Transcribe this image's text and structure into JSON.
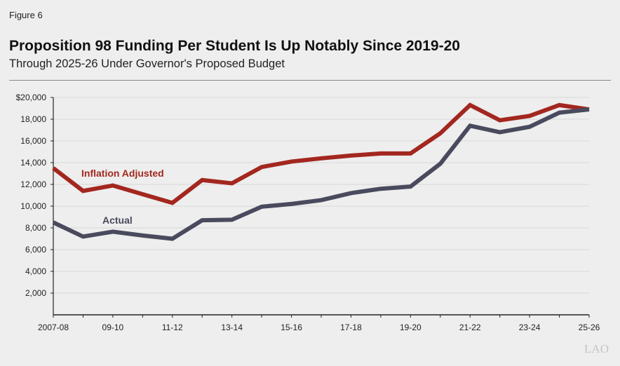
{
  "figure_label": "Figure 6",
  "logo_text": "LAO",
  "chart_data": {
    "type": "line",
    "title": "Proposition 98 Funding Per Student Is Up Notably Since 2019-20",
    "subtitle": "Through 2025-26 Under Governor's Proposed Budget",
    "xlabel": "",
    "ylabel": "",
    "categories": [
      "2007-08",
      "08-09",
      "09-10",
      "10-11",
      "11-12",
      "12-13",
      "13-14",
      "14-15",
      "15-16",
      "16-17",
      "17-18",
      "18-19",
      "19-20",
      "20-21",
      "21-22",
      "22-23",
      "23-24",
      "24-25",
      "25-26"
    ],
    "x_tick_labels": [
      "2007-08",
      "09-10",
      "11-12",
      "13-14",
      "15-16",
      "17-18",
      "19-20",
      "21-22",
      "23-24",
      "25-26"
    ],
    "y_tick_labels": [
      "$20,000",
      "18,000",
      "16,000",
      "14,000",
      "12,000",
      "10,000",
      "8,000",
      "6,000",
      "4,000",
      "2,000"
    ],
    "ylim": [
      0,
      20000
    ],
    "grid": true,
    "series": [
      {
        "name": "Inflation Adjusted",
        "color": "#a3271f",
        "values": [
          13500,
          11400,
          11900,
          11100,
          10300,
          12400,
          12100,
          13600,
          14100,
          14400,
          14650,
          14850,
          14850,
          16700,
          19300,
          17900,
          18300,
          19300,
          18900
        ]
      },
      {
        "name": "Actual",
        "color": "#4a4a5e",
        "values": [
          8500,
          7200,
          7650,
          7300,
          7000,
          8700,
          8750,
          9950,
          10200,
          10550,
          11200,
          11600,
          11800,
          13900,
          17400,
          16800,
          17300,
          18600,
          18900
        ]
      }
    ]
  }
}
